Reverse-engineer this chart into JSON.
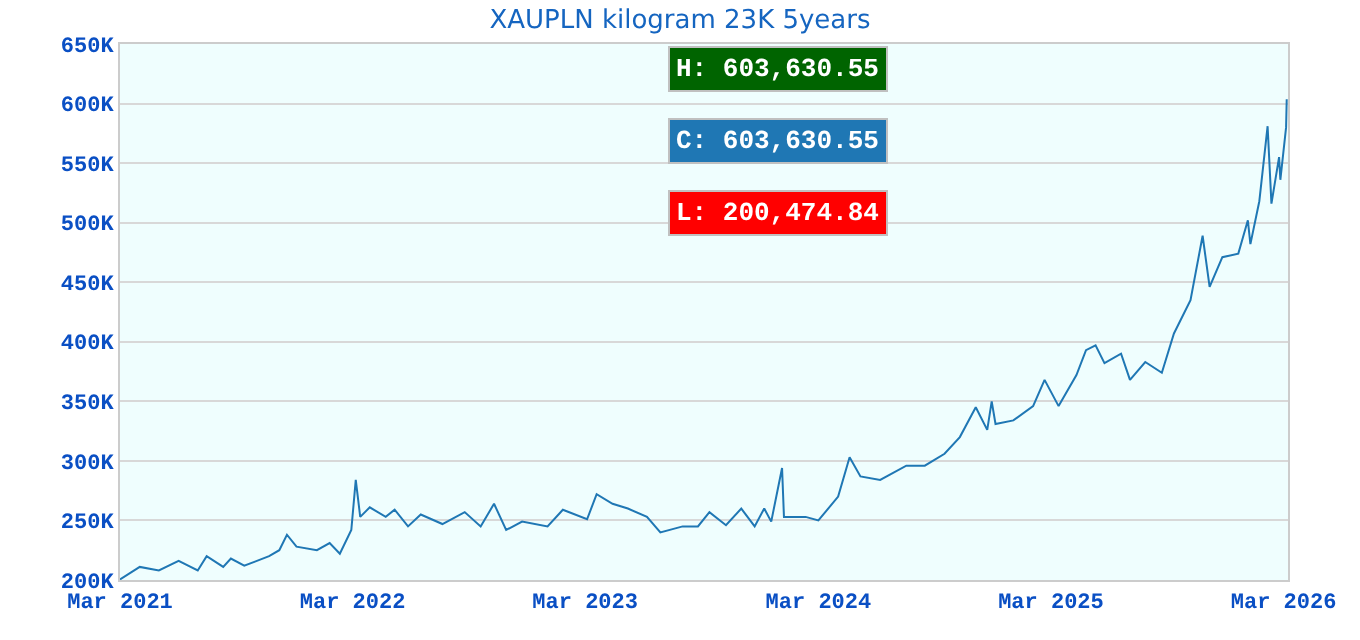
{
  "chart_data": {
    "type": "line",
    "title": "XAUPLN kilogram 23K 5years",
    "x": [
      "2021-03-01",
      "2021-04-01",
      "2021-05-01",
      "2021-06-01",
      "2021-07-01",
      "2021-07-15",
      "2021-08-10",
      "2021-08-22",
      "2021-09-12",
      "2021-10-21",
      "2021-11-06",
      "2021-11-18",
      "2021-12-03",
      "2022-01-04",
      "2022-01-24",
      "2022-02-09",
      "2022-02-27",
      "2022-03-06",
      "2022-03-13",
      "2022-03-28",
      "2022-04-22",
      "2022-05-06",
      "2022-05-27",
      "2022-06-16",
      "2022-07-20",
      "2022-08-24",
      "2022-09-18",
      "2022-10-09",
      "2022-10-28",
      "2022-11-22",
      "2023-01-01",
      "2023-01-25",
      "2023-03-04",
      "2023-03-19",
      "2023-04-13",
      "2023-05-07",
      "2023-06-06",
      "2023-06-27",
      "2023-08-01",
      "2023-08-25",
      "2023-09-12",
      "2023-10-08",
      "2023-11-01",
      "2023-11-22",
      "2023-12-07",
      "2023-12-18",
      "2024-01-04",
      "2024-01-07",
      "2024-02-10",
      "2024-03-01",
      "2024-04-01",
      "2024-04-19",
      "2024-05-06",
      "2024-06-06",
      "2024-07-17",
      "2024-08-15",
      "2024-09-15",
      "2024-10-09",
      "2024-11-03",
      "2024-11-21",
      "2024-11-28",
      "2024-12-04",
      "2025-01-01",
      "2025-02-01",
      "2025-02-19",
      "2025-03-13",
      "2025-04-10",
      "2025-04-25",
      "2025-05-10",
      "2025-05-24",
      "2025-06-19",
      "2025-07-03",
      "2025-07-27",
      "2025-08-22",
      "2025-09-10",
      "2025-10-06",
      "2025-10-25",
      "2025-11-05",
      "2025-11-25",
      "2025-12-20",
      "2026-01-04",
      "2026-01-08",
      "2026-01-22",
      "2026-02-04",
      "2026-02-10",
      "2026-02-22",
      "2026-02-24",
      "2026-03-05",
      "2026-03-06"
    ],
    "series": [
      {
        "color": "#1f77b4",
        "values": [
          200.47,
          211,
          208,
          216,
          208,
          220,
          211,
          218,
          212,
          220,
          225,
          238,
          228,
          225,
          231,
          222,
          242,
          284,
          253,
          261,
          253,
          259,
          245,
          255,
          247,
          257,
          245,
          264,
          242,
          249,
          245,
          259,
          251,
          272,
          264,
          260,
          253,
          240,
          245,
          245,
          257,
          246,
          260,
          245,
          260,
          249,
          294,
          253,
          253,
          250,
          270,
          303,
          287,
          284,
          296,
          296,
          306,
          320,
          345,
          326,
          350,
          331,
          334,
          346,
          368,
          346,
          372,
          393,
          397,
          382,
          390,
          368,
          383,
          374,
          407,
          435,
          489,
          446,
          471,
          474,
          502,
          482,
          518,
          581,
          516,
          555,
          536,
          580,
          603.63
        ]
      }
    ],
    "xlim": [
      "2021-03-01",
      "2026-03-08"
    ],
    "xticks": [
      {
        "value": "2021-03-01",
        "label": "Mar 2021"
      },
      {
        "value": "2022-03-01",
        "label": "Mar 2022"
      },
      {
        "value": "2023-03-01",
        "label": "Mar 2023"
      },
      {
        "value": "2024-03-01",
        "label": "Mar 2024"
      },
      {
        "value": "2025-03-01",
        "label": "Mar 2025"
      },
      {
        "value": "2026-03-01",
        "label": "Mar 2026"
      }
    ],
    "ylim": [
      200,
      650
    ],
    "yticks": [
      {
        "value": 200,
        "label": "200K"
      },
      {
        "value": 250,
        "label": "250K"
      },
      {
        "value": 300,
        "label": "300K"
      },
      {
        "value": 350,
        "label": "350K"
      },
      {
        "value": 400,
        "label": "400K"
      },
      {
        "value": 450,
        "label": "450K"
      },
      {
        "value": 500,
        "label": "500K"
      },
      {
        "value": 550,
        "label": "550K"
      },
      {
        "value": 600,
        "label": "600K"
      },
      {
        "value": 650,
        "label": "650K"
      }
    ],
    "grid": "y",
    "annotations": [
      "H: 603,630.55",
      "C: 603,630.55",
      "L: 200,474.84"
    ]
  }
}
